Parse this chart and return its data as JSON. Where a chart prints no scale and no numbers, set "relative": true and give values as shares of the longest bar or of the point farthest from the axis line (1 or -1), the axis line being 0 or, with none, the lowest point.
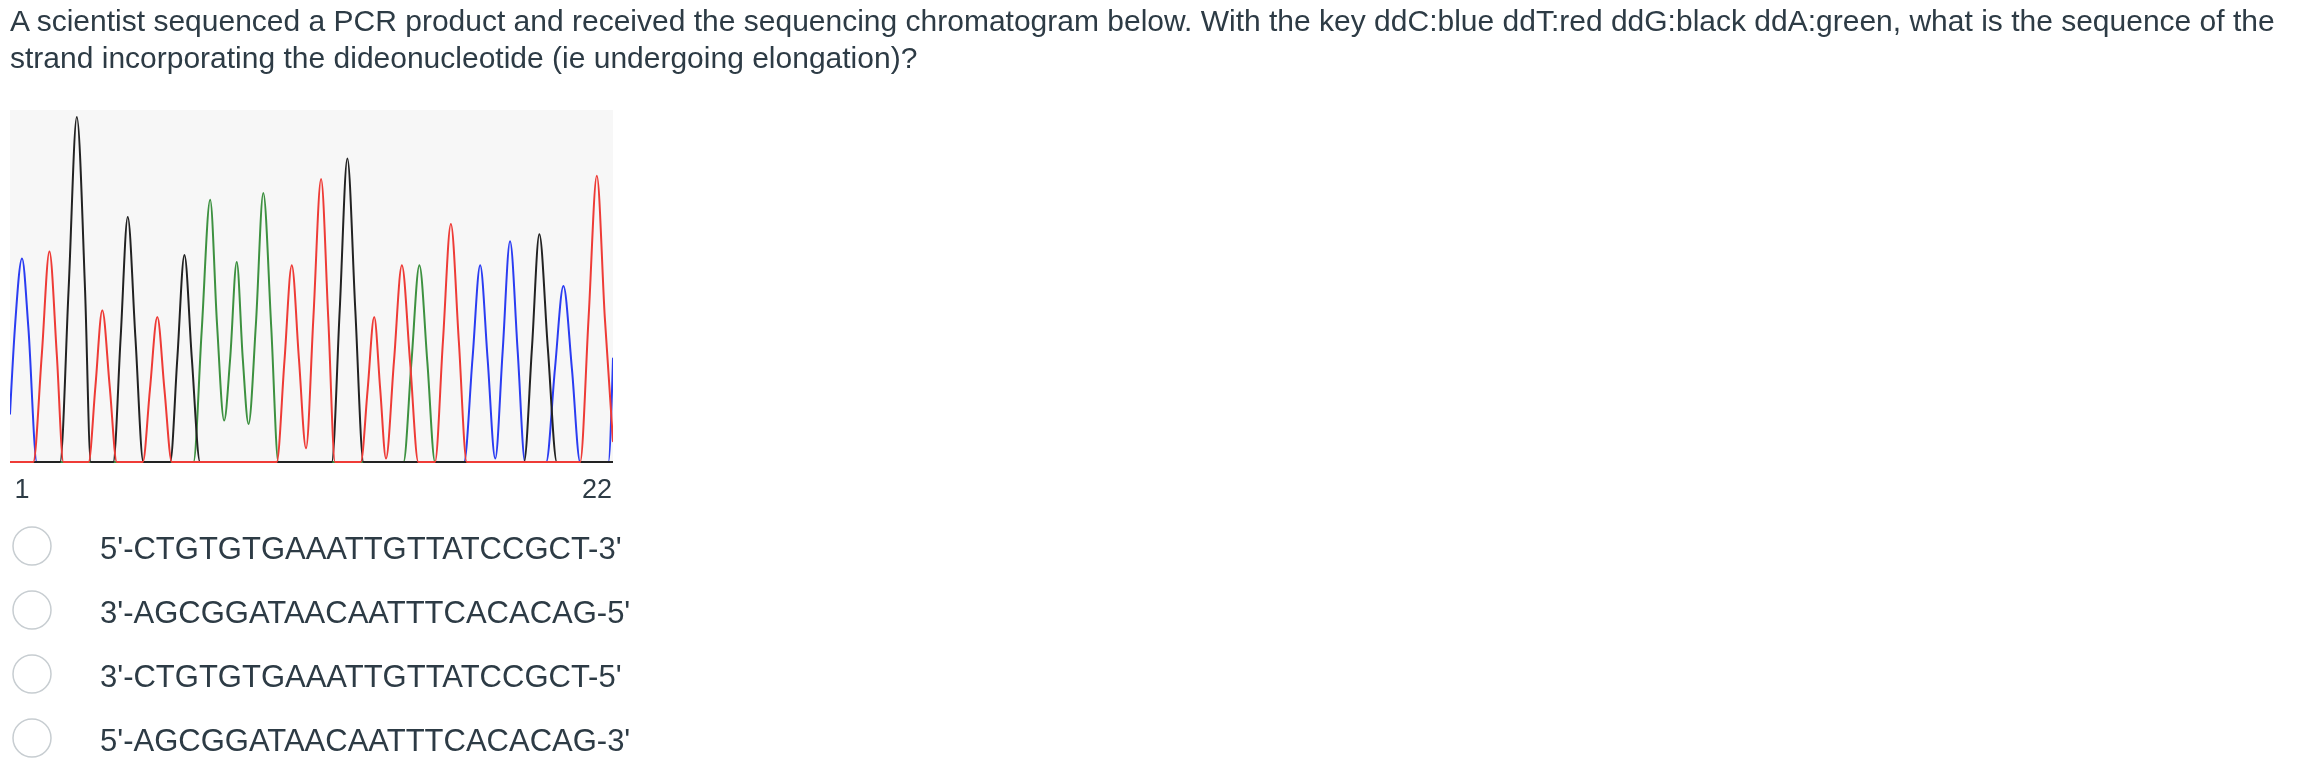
{
  "chart_data": {
    "type": "line",
    "title": "A scientist sequenced a PCR product and received the sequencing chromatogram below. With the key ddC:blue ddT:red ddG:black ddA:green, what is the sequence of the strand incorporating the dideonucleotide (ie undergoing elongation)?",
    "annotations": [
      "5'-CTGTGTGAAATTGTTATCCGCT-3'",
      "3'-AGCGGATAACAATTTCACACAG-5'",
      "3'-CTGTGTGAAATTGTTATCCGCT-5'",
      "5'-AGCGGATAACAATTTCACACAG-3'"
    ],
    "relative": true,
    "xlim": [
      0.56,
      22.58
    ],
    "xticks": [
      1,
      22
    ],
    "series": [
      {
        "color": "#2a3cf2",
        "x": [
          0.56,
          0.74,
          1.0,
          1.23,
          1.54,
          17.14,
          17.45,
          17.73,
          18.0,
          18.28,
          18.55,
          18.82,
          19.1,
          19.37,
          20.14,
          20.46,
          20.77,
          21.08,
          21.38,
          22.41,
          22.58
        ],
        "values": [
          0.14,
          0.39,
          0.59,
          0.39,
          0,
          0,
          0.3,
          0.57,
          0.3,
          0.01,
          0.32,
          0.64,
          0.32,
          0,
          0,
          0.27,
          0.51,
          0.27,
          0,
          0,
          0.3
        ]
      },
      {
        "color": "#3d9140",
        "x": [
          0.56,
          7.26,
          7.56,
          7.87,
          8.12,
          8.38,
          8.6,
          8.84,
          9.06,
          9.27,
          9.54,
          9.81,
          10.1,
          10.36,
          14.93,
          15.22,
          15.51,
          15.8,
          16.08,
          22.58
        ],
        "values": [
          0,
          0,
          0.38,
          0.76,
          0.4,
          0.12,
          0.3,
          0.58,
          0.3,
          0.11,
          0.4,
          0.78,
          0.39,
          0,
          0,
          0.29,
          0.57,
          0.29,
          0,
          0
        ]
      },
      {
        "color": "#222222",
        "x": [
          0.56,
          2.39,
          2.7,
          3.0,
          3.3,
          3.51,
          4.33,
          4.6,
          4.86,
          5.14,
          5.43,
          6.41,
          6.67,
          6.93,
          7.2,
          7.5,
          12.31,
          12.6,
          12.88,
          13.17,
          13.47,
          19.33,
          19.62,
          19.89,
          20.2,
          20.53,
          22.58
        ],
        "values": [
          0,
          0,
          0.5,
          1,
          0.5,
          0,
          0,
          0.36,
          0.71,
          0.36,
          0,
          0,
          0.3,
          0.6,
          0.3,
          0,
          0,
          0.44,
          0.88,
          0.44,
          0,
          0,
          0.33,
          0.66,
          0.33,
          0,
          0
        ]
      },
      {
        "color": "#ee3b36",
        "x": [
          0.56,
          1.41,
          1.72,
          2.0,
          2.27,
          2.51,
          3.43,
          3.68,
          3.93,
          4.2,
          4.46,
          5.41,
          5.67,
          5.94,
          6.2,
          6.47,
          10.3,
          10.58,
          10.85,
          11.11,
          11.37,
          11.64,
          11.92,
          12.18,
          12.43,
          13.37,
          13.62,
          13.86,
          14.08,
          14.29,
          14.58,
          14.87,
          15.17,
          15.47,
          16.08,
          16.37,
          16.66,
          16.95,
          17.24,
          21.38,
          21.69,
          21.99,
          22.28,
          22.58
        ],
        "values": [
          0,
          0,
          0.31,
          0.61,
          0.31,
          0,
          0,
          0.22,
          0.44,
          0.22,
          0,
          0,
          0.21,
          0.42,
          0.21,
          0,
          0,
          0.29,
          0.57,
          0.3,
          0.04,
          0.42,
          0.82,
          0.42,
          0,
          0,
          0.21,
          0.42,
          0.21,
          0.01,
          0.29,
          0.57,
          0.29,
          0,
          0,
          0.35,
          0.69,
          0.35,
          0,
          0,
          0.42,
          0.83,
          0.42,
          0.06
        ]
      }
    ]
  }
}
